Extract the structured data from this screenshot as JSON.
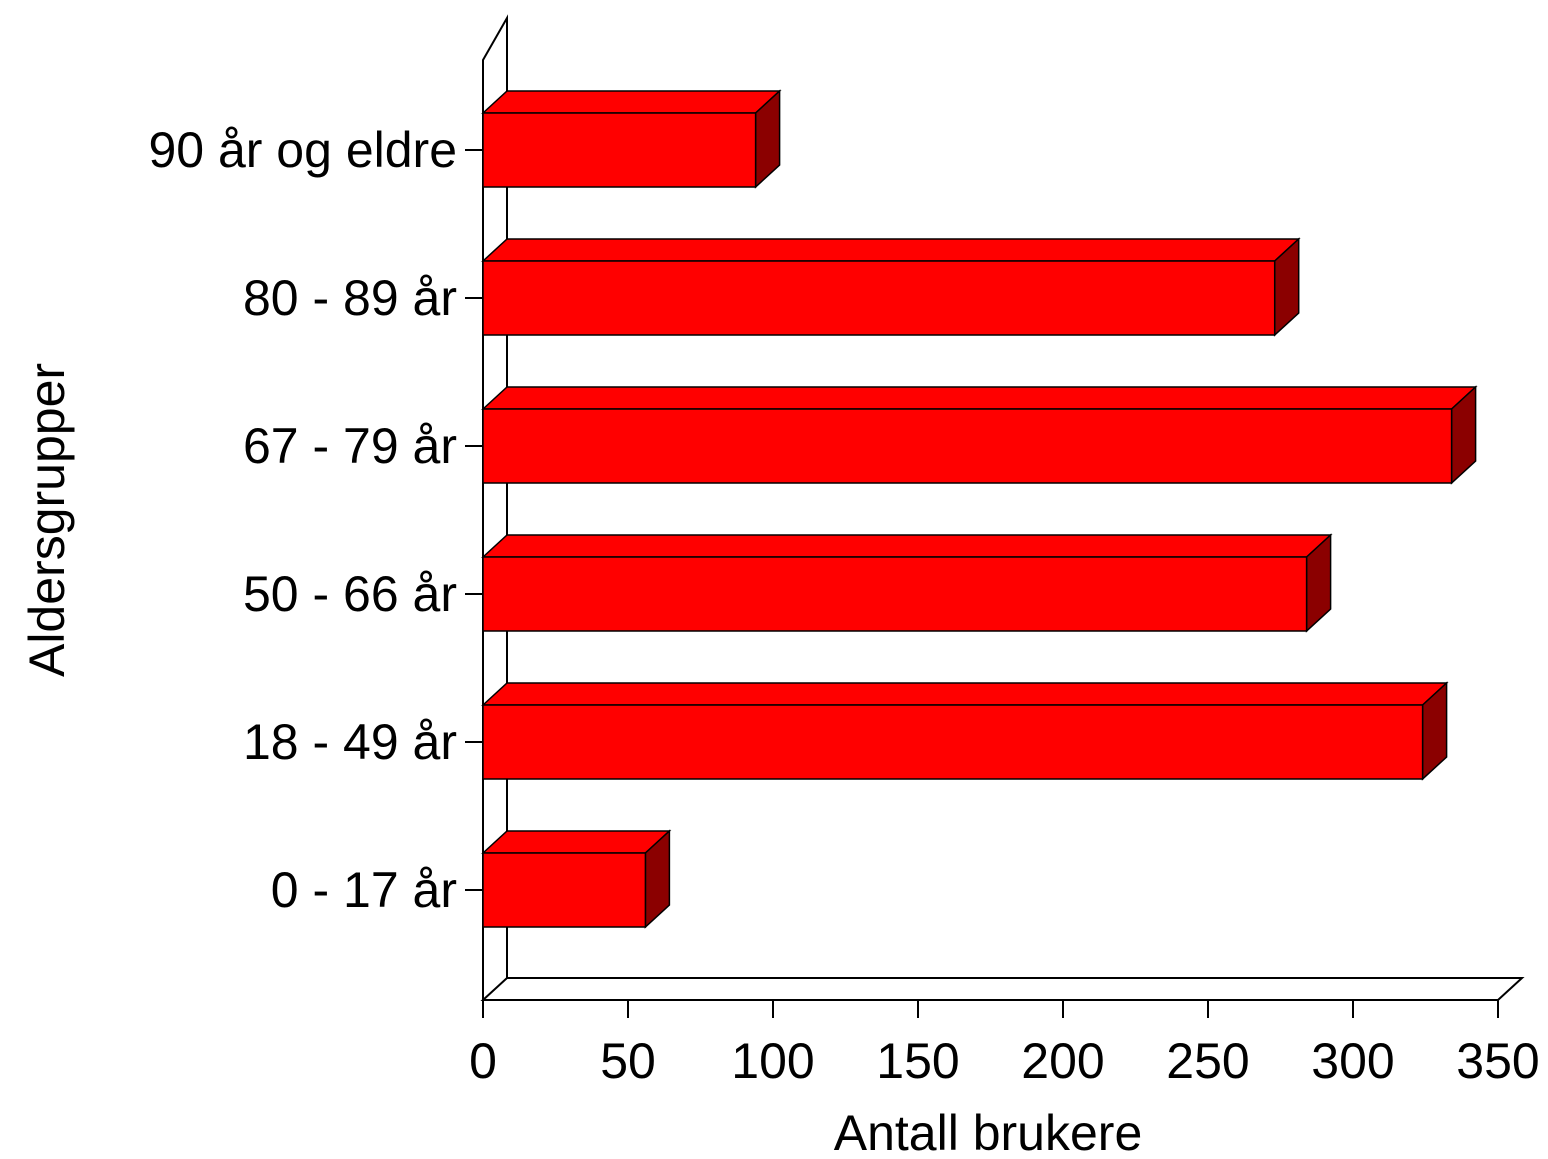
{
  "chart_data": {
    "type": "bar",
    "orientation": "horizontal",
    "style": "3d",
    "categories": [
      "0 - 17 år",
      "18 - 49 år",
      "50 - 66 år",
      "67 - 79 år",
      "80 - 89 år",
      "90 år og eldre"
    ],
    "values": [
      56,
      324,
      284,
      334,
      273,
      94
    ],
    "title": "",
    "xlabel": "Antall brukere",
    "ylabel": "Aldersgrupper",
    "xlim": [
      0,
      350
    ],
    "xticks": [
      "0",
      "50",
      "100",
      "150",
      "200",
      "250",
      "300",
      "350"
    ],
    "grid": false,
    "colors": {
      "bar_front": "#ff0000",
      "bar_top": "#ff0000",
      "bar_side": "#8b0000",
      "outline": "#000000"
    }
  }
}
